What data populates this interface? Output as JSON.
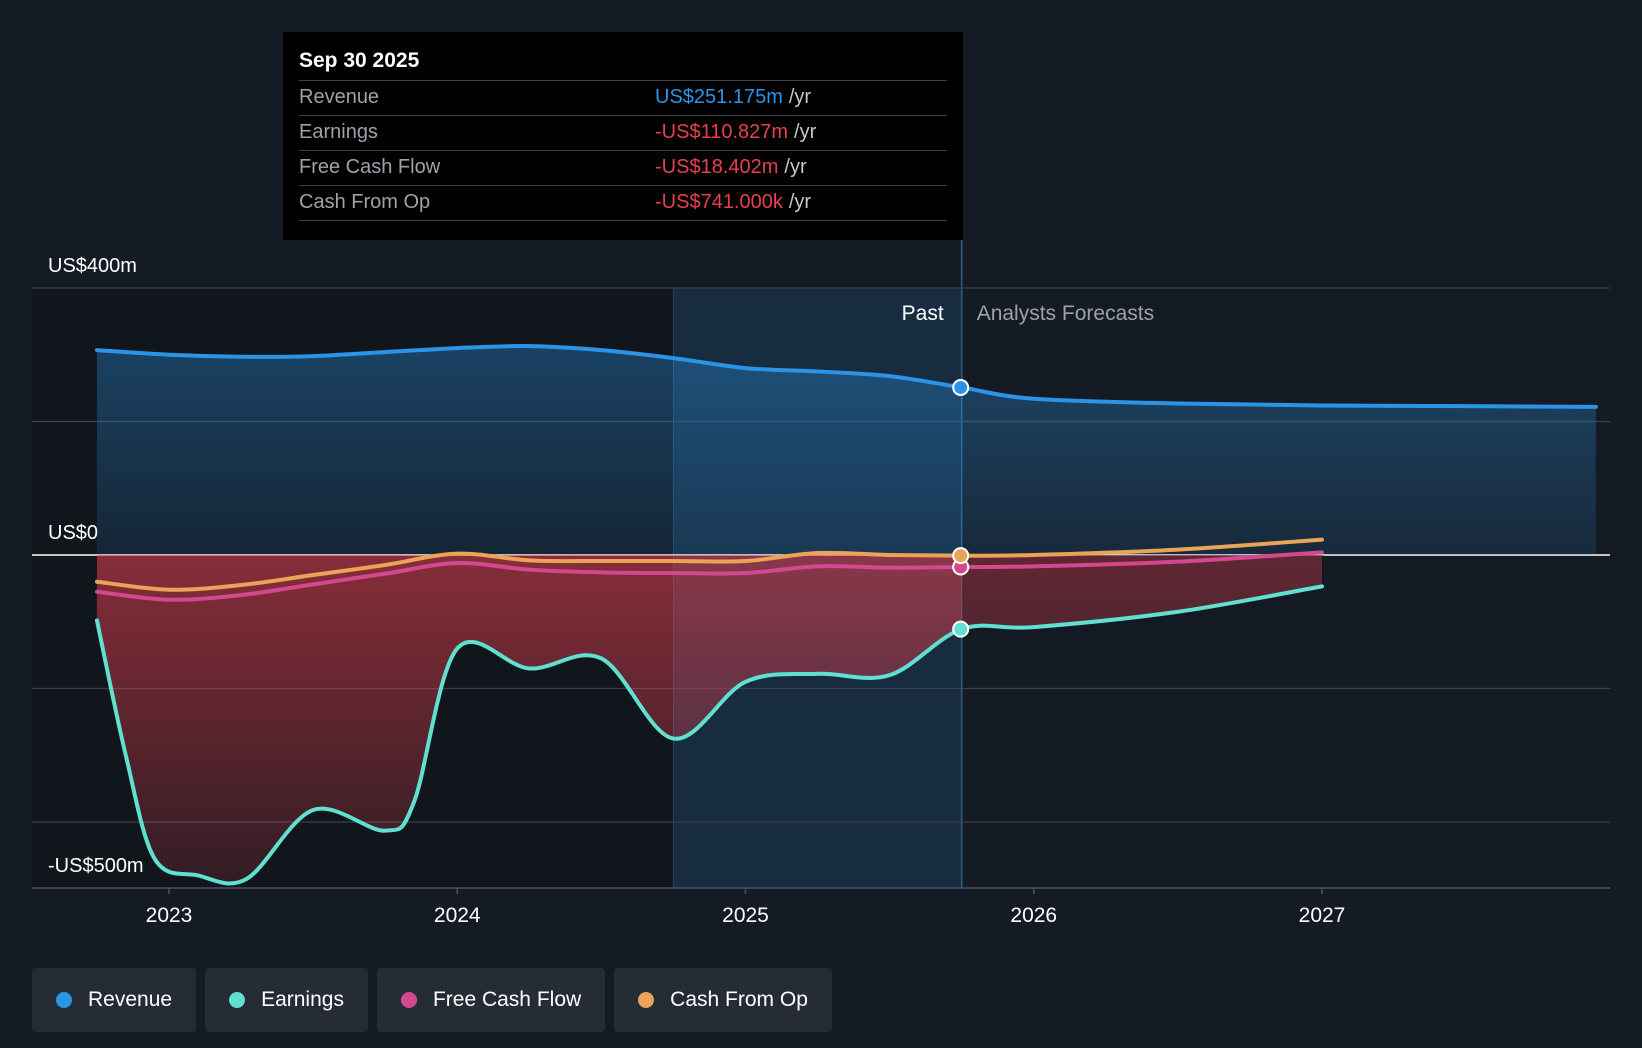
{
  "tooltip": {
    "date": "Sep 30 2025",
    "rows": [
      {
        "label": "Revenue",
        "value": "US$251.175m",
        "unit": "/yr",
        "color": "#2b94e6"
      },
      {
        "label": "Earnings",
        "value": "-US$110.827m",
        "unit": "/yr",
        "color": "#e8404f"
      },
      {
        "label": "Free Cash Flow",
        "value": "-US$18.402m",
        "unit": "/yr",
        "color": "#e8404f"
      },
      {
        "label": "Cash From Op",
        "value": "-US$741.000k",
        "unit": "/yr",
        "color": "#e8404f"
      }
    ]
  },
  "chart_data": {
    "type": "line",
    "title": "",
    "xlabel": "",
    "ylabel": "",
    "y_axis_labels": {
      "top": "US$400m",
      "zero": "US$0",
      "bottom": "-US$500m"
    },
    "ylim": [
      -500,
      400
    ],
    "xlim": [
      2022.55,
      2027.95
    ],
    "x_tick_labels": [
      "2023",
      "2024",
      "2025",
      "2026",
      "2027"
    ],
    "x_ticks": [
      2023,
      2024,
      2025,
      2026,
      2027
    ],
    "gridlines_y": [
      400,
      200,
      0,
      -200,
      -400
    ],
    "past_label": "Past",
    "forecast_label": "Analysts Forecasts",
    "divider_x": 2025.75,
    "shaded_past_start": 2024.75,
    "series": [
      {
        "name": "Revenue",
        "color": "#2b94e6",
        "points": [
          [
            2022.75,
            307
          ],
          [
            2023.0,
            300
          ],
          [
            2023.25,
            297
          ],
          [
            2023.5,
            298
          ],
          [
            2023.75,
            304
          ],
          [
            2024.0,
            310
          ],
          [
            2024.25,
            313
          ],
          [
            2024.5,
            307
          ],
          [
            2024.75,
            295
          ],
          [
            2025.0,
            280
          ],
          [
            2025.25,
            275
          ],
          [
            2025.5,
            268
          ],
          [
            2025.75,
            251
          ],
          [
            2026.0,
            234
          ],
          [
            2026.5,
            227
          ],
          [
            2027.0,
            224
          ],
          [
            2027.5,
            223
          ],
          [
            2027.95,
            222
          ]
        ]
      },
      {
        "name": "Earnings",
        "color": "#5fe0d0",
        "points": [
          [
            2022.75,
            -98
          ],
          [
            2022.85,
            -300
          ],
          [
            2022.95,
            -455
          ],
          [
            2023.1,
            -480
          ],
          [
            2023.27,
            -485
          ],
          [
            2023.5,
            -382
          ],
          [
            2023.75,
            -413
          ],
          [
            2023.85,
            -370
          ],
          [
            2024.0,
            -140
          ],
          [
            2024.25,
            -170
          ],
          [
            2024.5,
            -155
          ],
          [
            2024.75,
            -275
          ],
          [
            2025.0,
            -190
          ],
          [
            2025.25,
            -178
          ],
          [
            2025.5,
            -180
          ],
          [
            2025.75,
            -111
          ],
          [
            2026.0,
            -108
          ],
          [
            2026.5,
            -85
          ],
          [
            2027.0,
            -47
          ]
        ]
      },
      {
        "name": "Free Cash Flow",
        "color": "#d4488f",
        "points": [
          [
            2022.75,
            -55
          ],
          [
            2023.0,
            -67
          ],
          [
            2023.25,
            -60
          ],
          [
            2023.5,
            -44
          ],
          [
            2023.75,
            -28
          ],
          [
            2024.0,
            -12
          ],
          [
            2024.25,
            -22
          ],
          [
            2024.5,
            -26
          ],
          [
            2024.75,
            -27
          ],
          [
            2025.0,
            -27
          ],
          [
            2025.25,
            -17
          ],
          [
            2025.5,
            -19
          ],
          [
            2025.75,
            -18
          ],
          [
            2026.0,
            -17
          ],
          [
            2026.5,
            -10
          ],
          [
            2027.0,
            4
          ]
        ]
      },
      {
        "name": "Cash From Op",
        "color": "#e9a458",
        "points": [
          [
            2022.75,
            -40
          ],
          [
            2023.0,
            -52
          ],
          [
            2023.25,
            -45
          ],
          [
            2023.5,
            -30
          ],
          [
            2023.75,
            -15
          ],
          [
            2024.0,
            2
          ],
          [
            2024.25,
            -8
          ],
          [
            2024.5,
            -9
          ],
          [
            2024.75,
            -9
          ],
          [
            2025.0,
            -9
          ],
          [
            2025.25,
            3
          ],
          [
            2025.5,
            0
          ],
          [
            2025.75,
            -1
          ],
          [
            2026.0,
            0
          ],
          [
            2026.5,
            8
          ],
          [
            2027.0,
            23
          ]
        ]
      }
    ]
  },
  "legend": [
    {
      "label": "Revenue",
      "color": "#2b94e6"
    },
    {
      "label": "Earnings",
      "color": "#5fe0d0"
    },
    {
      "label": "Free Cash Flow",
      "color": "#d4488f"
    },
    {
      "label": "Cash From Op",
      "color": "#e9a458"
    }
  ]
}
